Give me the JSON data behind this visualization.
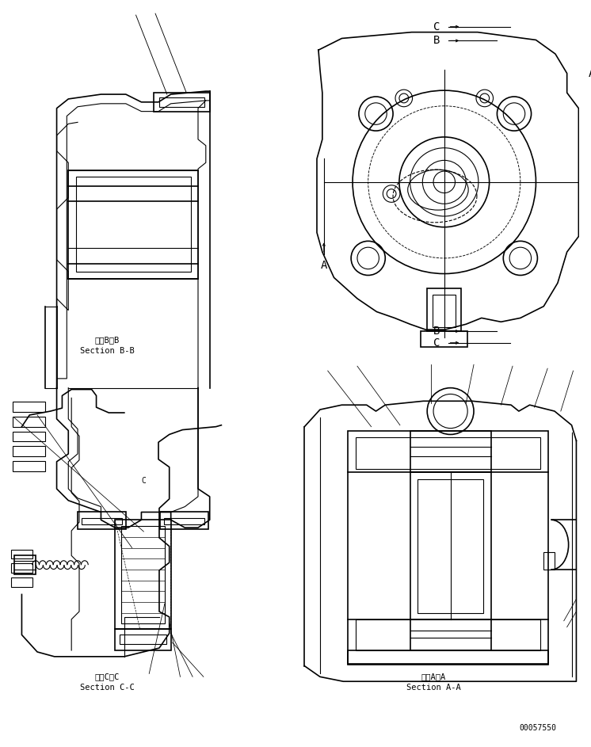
{
  "background_color": "#ffffff",
  "line_color": "#000000",
  "line_width": 0.8,
  "fig_width": 7.46,
  "fig_height": 9.43,
  "labels": {
    "section_bb_ja": "断面B－B",
    "section_bb_en": "Section B-B",
    "section_cc_ja": "断面C－C",
    "section_cc_en": "Section C-C",
    "section_aa_ja": "断面A－A",
    "section_aa_en": "Section A-A",
    "part_number": "00057550"
  },
  "font_size_label": 7.5,
  "font_size_partnum": 7.0
}
